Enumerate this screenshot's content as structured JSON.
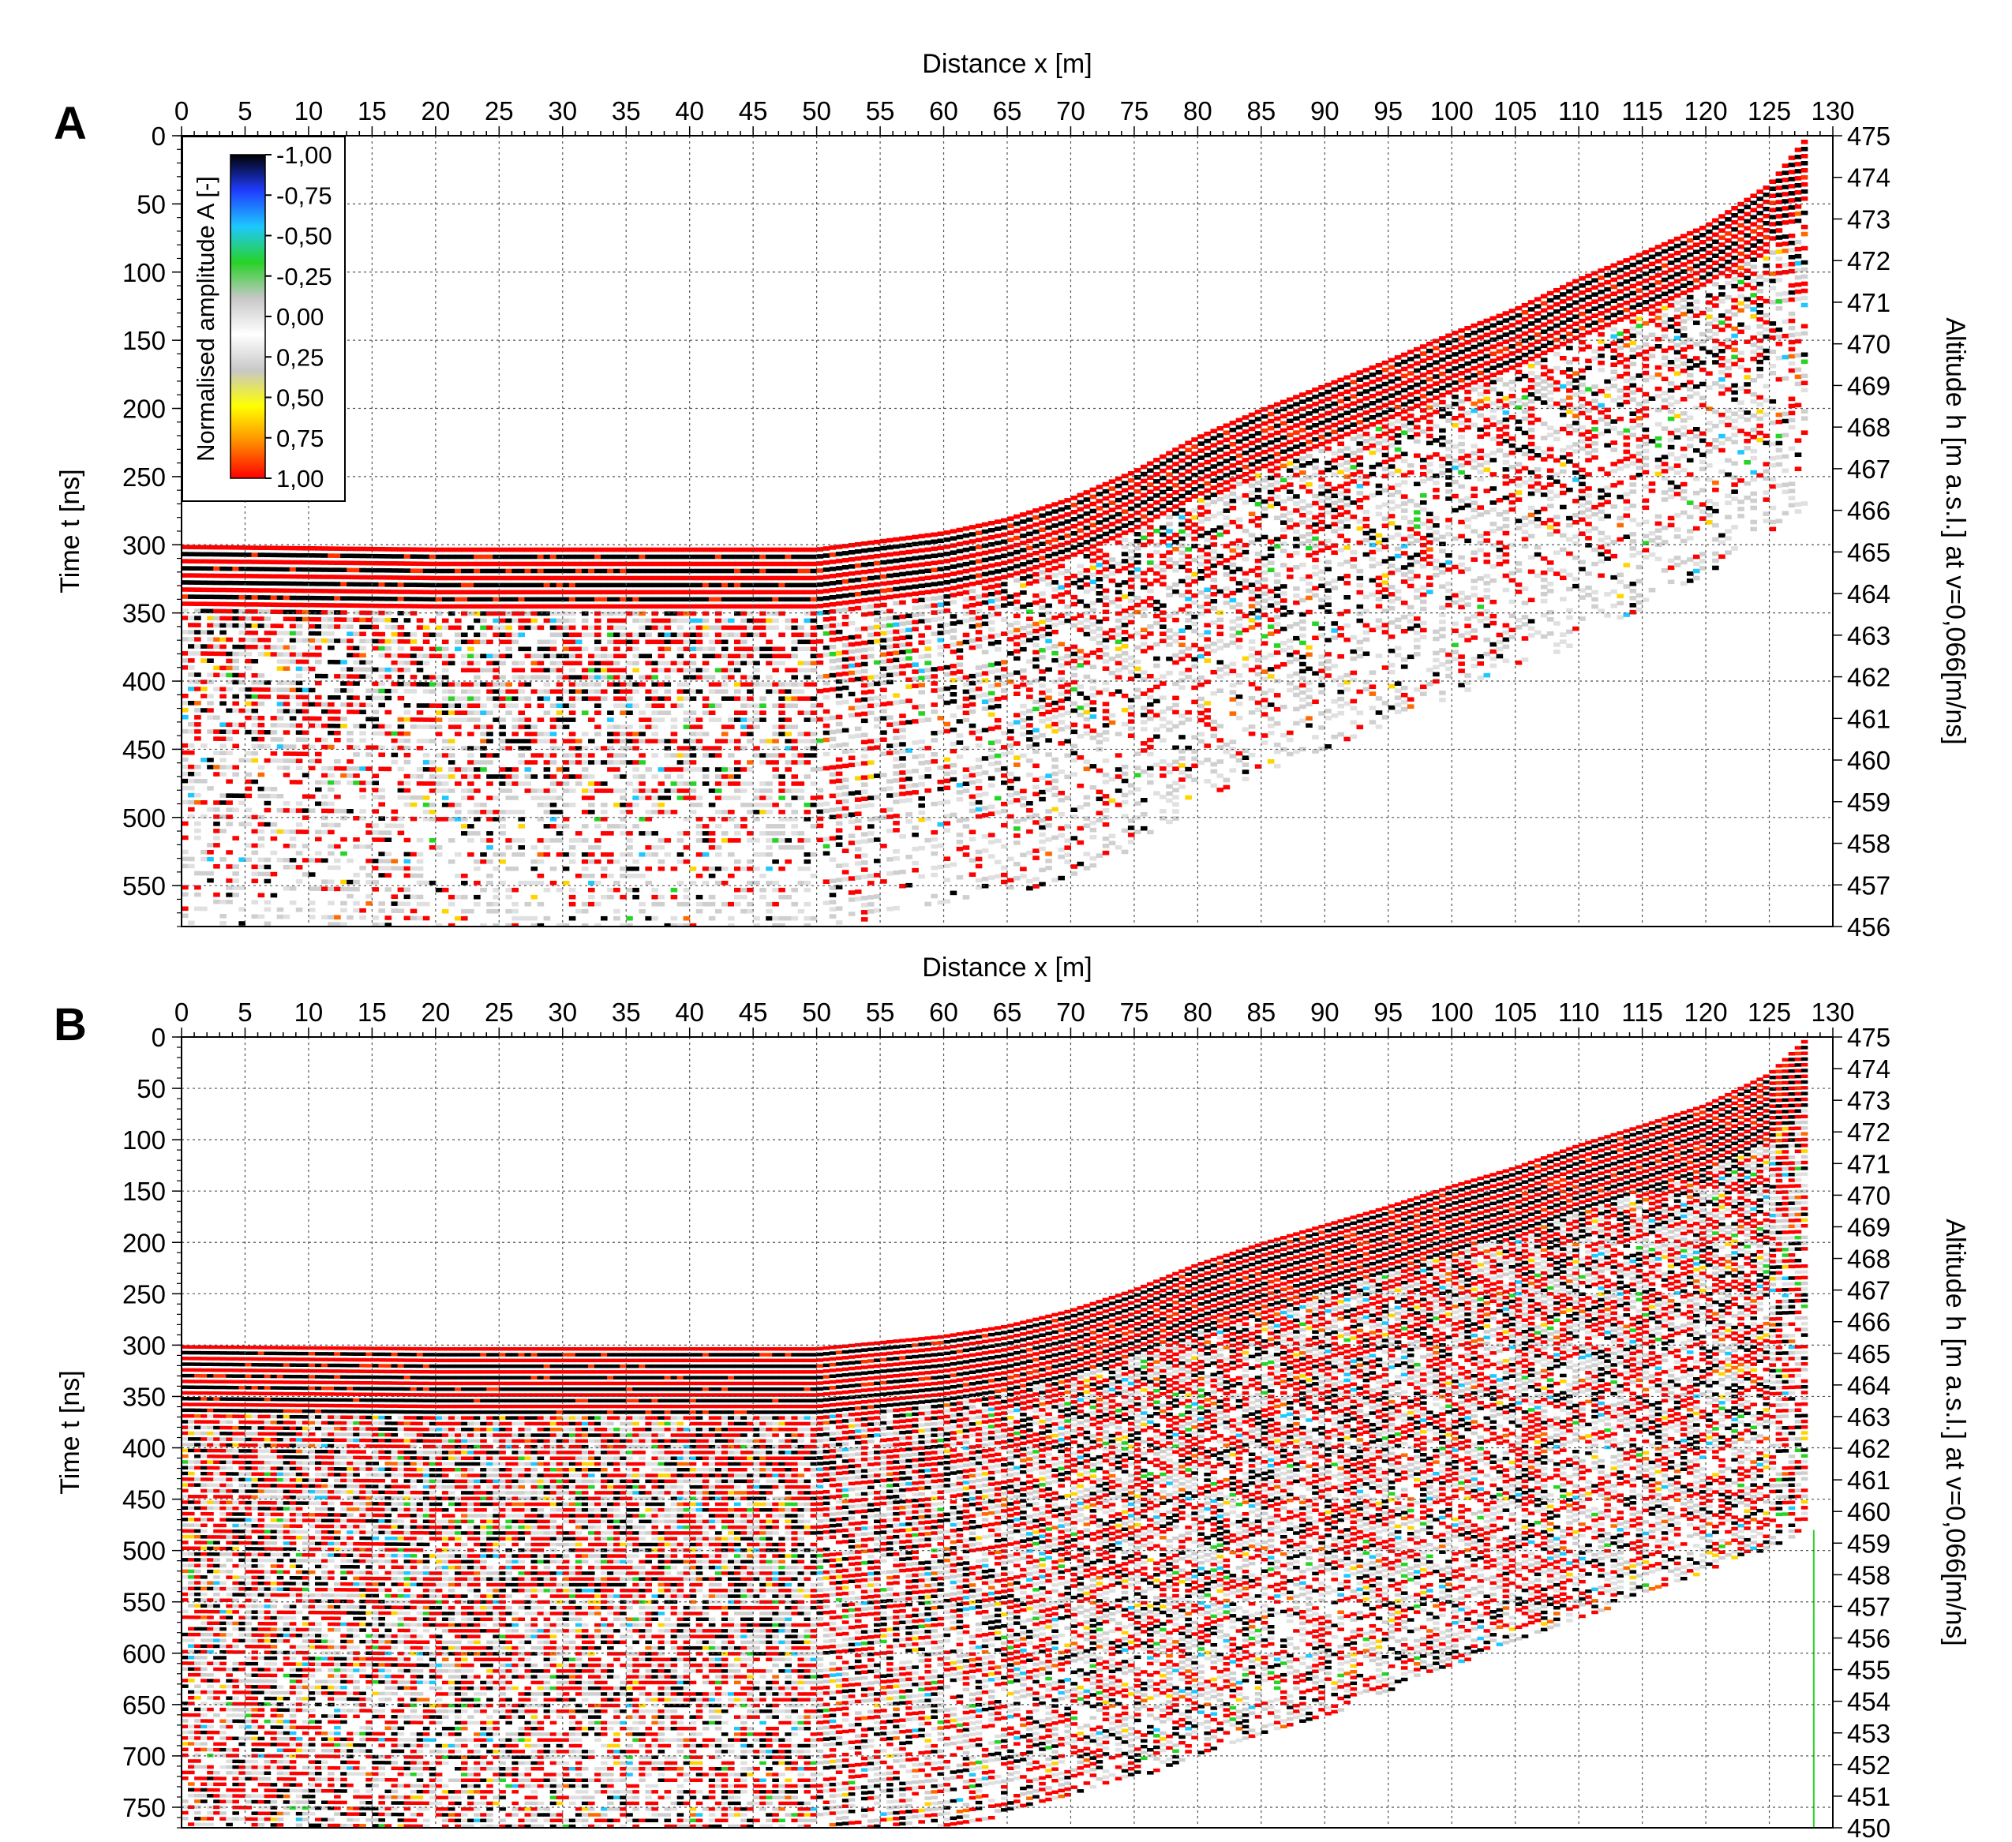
{
  "chart_data": [
    {
      "type": "heatmap",
      "panel_label": "A",
      "xlabel": "Distance x [m]",
      "ylabel": "Time t [ns]",
      "y2label": "Altitude h [m a.s.l.] at v=0,066[m/ns]",
      "xlim": [
        0,
        130
      ],
      "ylim": [
        0,
        580
      ],
      "y2lim": [
        475,
        456
      ],
      "x_ticks": [
        0,
        5,
        10,
        15,
        20,
        25,
        30,
        35,
        40,
        45,
        50,
        55,
        60,
        65,
        70,
        75,
        80,
        85,
        90,
        95,
        100,
        105,
        110,
        115,
        120,
        125,
        130
      ],
      "y_ticks": [
        0,
        50,
        100,
        150,
        200,
        250,
        300,
        350,
        400,
        450,
        500,
        550
      ],
      "y2_ticks": [
        475,
        474,
        473,
        472,
        471,
        470,
        469,
        468,
        467,
        466,
        465,
        464,
        463,
        462,
        461,
        460,
        459,
        458,
        457,
        456
      ],
      "grid": true,
      "surface": {
        "x": [
          0,
          20,
          50,
          55,
          60,
          65,
          70,
          75,
          80,
          85,
          90,
          95,
          100,
          105,
          110,
          115,
          120,
          125,
          128
        ],
        "t": [
          300,
          302,
          302,
          296,
          290,
          280,
          265,
          245,
          220,
          200,
          182,
          164,
          144,
          126,
          104,
          85,
          65,
          35,
          0
        ]
      },
      "data_bottom": {
        "x": [
          0,
          30,
          50,
          70,
          75,
          80,
          90,
          100,
          110,
          120,
          128
        ],
        "t": [
          580,
          580,
          580,
          545,
          520,
          490,
          450,
          410,
          370,
          320,
          270
        ]
      },
      "colorbar": {
        "label": "Normalised amplitude A [-]",
        "ticks": [
          "-1,00",
          "-0,75",
          "-0,50",
          "-0,25",
          "0,00",
          "0,25",
          "0,50",
          "0,75",
          "1,00"
        ],
        "colors": [
          "#000000",
          "#1f3cff",
          "#1ec8ff",
          "#28d228",
          "#c8c8c8",
          "#ffffff",
          "#c8c8c8",
          "#ffff00",
          "#ff8c00",
          "#ff0000"
        ]
      }
    },
    {
      "type": "heatmap",
      "panel_label": "B",
      "xlabel": "Distance x [m]",
      "ylabel": "Time t [ns]",
      "y2label": "Altitude h [m a.s.l.] at v=0,066[m/ns]",
      "xlim": [
        0,
        130
      ],
      "ylim": [
        0,
        770
      ],
      "y2lim": [
        475,
        450
      ],
      "x_ticks": [
        0,
        5,
        10,
        15,
        20,
        25,
        30,
        35,
        40,
        45,
        50,
        55,
        60,
        65,
        70,
        75,
        80,
        85,
        90,
        95,
        100,
        105,
        110,
        115,
        120,
        125,
        130
      ],
      "y_ticks": [
        0,
        50,
        100,
        150,
        200,
        250,
        300,
        350,
        400,
        450,
        500,
        550,
        600,
        650,
        700,
        750
      ],
      "y2_ticks": [
        475,
        474,
        473,
        472,
        471,
        470,
        469,
        468,
        467,
        466,
        465,
        464,
        463,
        462,
        461,
        460,
        459,
        458,
        457,
        456,
        455,
        454,
        453,
        452,
        451,
        450
      ],
      "grid": true,
      "surface": {
        "x": [
          0,
          20,
          50,
          55,
          60,
          65,
          70,
          75,
          80,
          85,
          90,
          95,
          100,
          105,
          110,
          115,
          120,
          125,
          128
        ],
        "t": [
          300,
          302,
          302,
          296,
          290,
          280,
          265,
          245,
          220,
          200,
          182,
          164,
          144,
          126,
          104,
          85,
          65,
          35,
          0
        ]
      },
      "data_bottom": {
        "x": [
          0,
          50,
          60,
          70,
          80,
          90,
          100,
          110,
          120,
          128
        ],
        "t": [
          770,
          770,
          770,
          740,
          700,
          660,
          610,
          565,
          520,
          480
        ]
      }
    }
  ]
}
